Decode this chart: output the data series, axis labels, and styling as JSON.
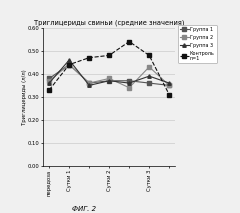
{
  "title": "Триглицериды свиньи (средние значения)",
  "ylabel": "Триглицериды (л/л)",
  "xlabel_bottom": "ФИГ. 2",
  "x_labels": [
    "передоза",
    "Сутки 1",
    "",
    "Сутки 2",
    "",
    "Сутки 3",
    ""
  ],
  "x_positions": [
    0,
    1,
    2,
    3,
    4,
    5,
    6
  ],
  "ylim": [
    0.0,
    0.6
  ],
  "yticks": [
    0.0,
    0.1,
    0.2,
    0.3,
    0.4,
    0.5,
    0.6
  ],
  "groups": {
    "Группа 1": {
      "values": [
        0.38,
        0.44,
        0.36,
        0.37,
        0.37,
        0.36,
        0.35
      ],
      "marker": "s",
      "linestyle": "-",
      "color": "#555555"
    },
    "Группа 2": {
      "values": [
        0.37,
        0.44,
        0.36,
        0.38,
        0.34,
        0.43,
        0.35
      ],
      "marker": "s",
      "linestyle": "-",
      "color": "#888888"
    },
    "Группа 3": {
      "values": [
        0.36,
        0.46,
        0.35,
        0.37,
        0.36,
        0.39,
        0.36
      ],
      "marker": "^",
      "linestyle": "-",
      "color": "#333333"
    },
    "Контроль n=1": {
      "values": [
        0.33,
        0.44,
        0.47,
        0.48,
        0.54,
        0.48,
        0.31
      ],
      "marker": "s",
      "linestyle": "--",
      "color": "#111111"
    }
  },
  "legend_order": [
    "Группа 1",
    "Группа 2",
    "Группа 3",
    "Контроль n=1"
  ],
  "legend_labels": [
    "Группа 1",
    "Группа 2",
    "Группа 3",
    "Контроль\nn=1"
  ],
  "background_color": "#f0f0f0",
  "grid_color": "#cccccc"
}
